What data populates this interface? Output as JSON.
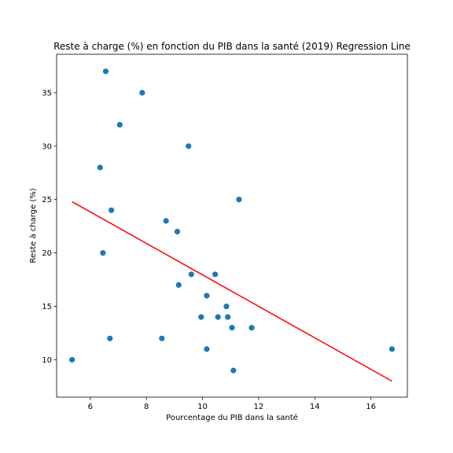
{
  "chart_data": {
    "type": "scatter",
    "title": "Reste à charge (%) en fonction du PIB dans la santé (2019) Regression Line",
    "xlabel": "Pourcentage du PIB dans la santé",
    "ylabel": "Reste à charge (%)",
    "xlim": [
      4.8,
      17.3
    ],
    "ylim": [
      6.5,
      38.6
    ],
    "xticks": [
      6,
      8,
      10,
      12,
      14,
      16
    ],
    "yticks": [
      10,
      15,
      20,
      25,
      30,
      35
    ],
    "grid": false,
    "series": [
      {
        "type": "scatter",
        "color": "#1f77b4",
        "points": [
          {
            "x": 5.35,
            "y": 10
          },
          {
            "x": 6.35,
            "y": 28
          },
          {
            "x": 6.45,
            "y": 20
          },
          {
            "x": 6.55,
            "y": 37
          },
          {
            "x": 6.7,
            "y": 12
          },
          {
            "x": 6.75,
            "y": 24
          },
          {
            "x": 7.05,
            "y": 32
          },
          {
            "x": 7.85,
            "y": 35
          },
          {
            "x": 8.55,
            "y": 12
          },
          {
            "x": 8.7,
            "y": 23
          },
          {
            "x": 9.1,
            "y": 22
          },
          {
            "x": 9.15,
            "y": 17
          },
          {
            "x": 9.5,
            "y": 30
          },
          {
            "x": 9.6,
            "y": 18
          },
          {
            "x": 9.95,
            "y": 14
          },
          {
            "x": 10.15,
            "y": 16
          },
          {
            "x": 10.15,
            "y": 11
          },
          {
            "x": 10.45,
            "y": 18
          },
          {
            "x": 10.55,
            "y": 14
          },
          {
            "x": 10.85,
            "y": 15
          },
          {
            "x": 10.9,
            "y": 14
          },
          {
            "x": 11.05,
            "y": 13
          },
          {
            "x": 11.1,
            "y": 9
          },
          {
            "x": 11.3,
            "y": 25
          },
          {
            "x": 11.75,
            "y": 13
          },
          {
            "x": 16.75,
            "y": 11
          }
        ]
      },
      {
        "type": "line",
        "color": "#ff0000",
        "points": [
          {
            "x": 5.35,
            "y": 24.8
          },
          {
            "x": 16.75,
            "y": 8.0
          }
        ]
      }
    ]
  }
}
